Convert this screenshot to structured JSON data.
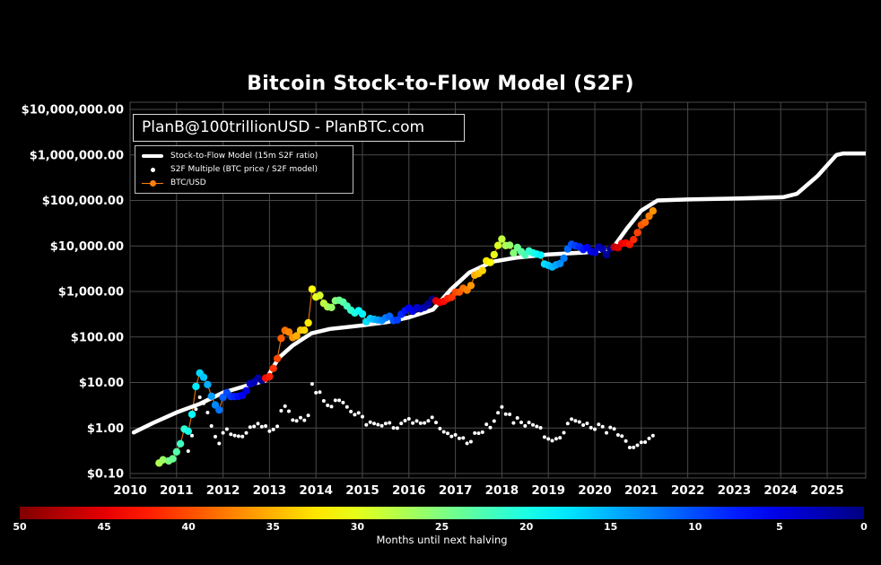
{
  "title": "Bitcoin Stock-to-Flow Model (S2F)",
  "annotation": "PlanB@100trillionUSD - PlanBTC.com",
  "legend": [
    {
      "label": "Stock-to-Flow Model (15m S2F ratio)",
      "marker": "thick-white-line"
    },
    {
      "label": "S2F Multiple (BTC price / S2F model)",
      "marker": "white-dot"
    },
    {
      "label": "BTC/USD",
      "marker": "orange-line-dot"
    }
  ],
  "colorbar": {
    "label": "Months until next halving",
    "ticks": [
      50,
      45,
      40,
      35,
      30,
      25,
      20,
      15,
      10,
      5,
      0
    ]
  },
  "colors": {
    "background": "#000000",
    "text": "#ffffff",
    "grid": "#4a4a4a",
    "model_line": "#ffffff",
    "btc_line": "#ff7f0e",
    "multiple_dot": "#ffffff"
  },
  "chart_data": {
    "type": "scatter",
    "title": "Bitcoin Stock-to-Flow Model (S2F)",
    "x_axis": {
      "range": [
        2010,
        2025.83
      ],
      "ticks": [
        2010,
        2011,
        2012,
        2013,
        2014,
        2015,
        2016,
        2017,
        2018,
        2019,
        2020,
        2021,
        2022,
        2023,
        2024,
        2025
      ]
    },
    "y_axis": {
      "scale": "log",
      "range": [
        0.1,
        10000000
      ],
      "ticks": [
        {
          "value": 10000000,
          "label": "$10,000,000.00"
        },
        {
          "value": 1000000,
          "label": "$1,000,000.00"
        },
        {
          "value": 100000,
          "label": "$100,000.00"
        },
        {
          "value": 10000,
          "label": "$10,000.00"
        },
        {
          "value": 1000,
          "label": "$1,000.00"
        },
        {
          "value": 100,
          "label": "$100.00"
        },
        {
          "value": 10,
          "label": "$10.00"
        },
        {
          "value": 1,
          "label": "$1.00"
        },
        {
          "value": 0.1,
          "label": "$0.10"
        }
      ]
    },
    "halvings": [
      2012.907,
      2016.519,
      2020.36,
      2024.3
    ],
    "months_color_scale": {
      "min": 0,
      "max": 50,
      "colormap": "jet-reversed",
      "note": "BTC/USD dots colored by months until next halving; 50=dark red, 0=dark blue"
    },
    "model_line": {
      "name": "Stock-to-Flow Model (15m S2F ratio)",
      "points": [
        [
          2010.08,
          0.8
        ],
        [
          2010.5,
          1.3
        ],
        [
          2011.0,
          2.2
        ],
        [
          2011.5,
          3.4
        ],
        [
          2012.0,
          6.0
        ],
        [
          2012.5,
          8.5
        ],
        [
          2012.91,
          11
        ],
        [
          2013.2,
          35
        ],
        [
          2013.5,
          65
        ],
        [
          2013.9,
          120
        ],
        [
          2014.3,
          150
        ],
        [
          2015.0,
          180
        ],
        [
          2015.5,
          210
        ],
        [
          2016.0,
          270
        ],
        [
          2016.52,
          400
        ],
        [
          2016.9,
          1100
        ],
        [
          2017.3,
          2600
        ],
        [
          2017.8,
          4500
        ],
        [
          2018.3,
          5500
        ],
        [
          2019.0,
          6500
        ],
        [
          2019.8,
          7200
        ],
        [
          2020.37,
          8500
        ],
        [
          2020.7,
          25000
        ],
        [
          2021.0,
          60000
        ],
        [
          2021.35,
          100000
        ],
        [
          2022.0,
          105000
        ],
        [
          2023.0,
          110000
        ],
        [
          2024.05,
          118000
        ],
        [
          2024.35,
          140000
        ],
        [
          2024.8,
          350000
        ],
        [
          2025.2,
          1000000
        ],
        [
          2025.35,
          1080000
        ],
        [
          2025.83,
          1080000
        ]
      ]
    },
    "btc_usd": {
      "name": "BTC/USD",
      "color_by": "months until next halving (derived from halvings list)",
      "points": [
        [
          2010.625,
          0.17
        ],
        [
          2010.708,
          0.2
        ],
        [
          2010.833,
          0.19
        ],
        [
          2010.917,
          0.21
        ],
        [
          2011.0,
          0.3
        ],
        [
          2011.083,
          0.45
        ],
        [
          2011.167,
          0.95
        ],
        [
          2011.25,
          0.85
        ],
        [
          2011.333,
          2.0
        ],
        [
          2011.417,
          8.2
        ],
        [
          2011.5,
          16.1
        ],
        [
          2011.583,
          13.0
        ],
        [
          2011.667,
          9.0
        ],
        [
          2011.75,
          5.0
        ],
        [
          2011.833,
          3.2
        ],
        [
          2011.917,
          2.5
        ],
        [
          2012.0,
          4.7
        ],
        [
          2012.083,
          6.0
        ],
        [
          2012.167,
          4.9
        ],
        [
          2012.25,
          4.9
        ],
        [
          2012.333,
          5.0
        ],
        [
          2012.417,
          5.2
        ],
        [
          2012.5,
          6.6
        ],
        [
          2012.583,
          9.4
        ],
        [
          2012.667,
          10.2
        ],
        [
          2012.75,
          12.4
        ],
        [
          2012.833,
          11.2
        ],
        [
          2012.917,
          12.5
        ],
        [
          2013.0,
          13.5
        ],
        [
          2013.083,
          20.4
        ],
        [
          2013.167,
          33.4
        ],
        [
          2013.25,
          93
        ],
        [
          2013.333,
          139
        ],
        [
          2013.417,
          128
        ],
        [
          2013.5,
          97
        ],
        [
          2013.583,
          106
        ],
        [
          2013.667,
          141
        ],
        [
          2013.75,
          141
        ],
        [
          2013.833,
          204
        ],
        [
          2013.917,
          1127
        ],
        [
          2014.0,
          755
        ],
        [
          2014.083,
          815
        ],
        [
          2014.167,
          550
        ],
        [
          2014.25,
          458
        ],
        [
          2014.333,
          446
        ],
        [
          2014.417,
          627
        ],
        [
          2014.5,
          640
        ],
        [
          2014.583,
          585
        ],
        [
          2014.667,
          478
        ],
        [
          2014.75,
          387
        ],
        [
          2014.833,
          338
        ],
        [
          2014.917,
          378
        ],
        [
          2015.0,
          320
        ],
        [
          2015.083,
          217
        ],
        [
          2015.167,
          254
        ],
        [
          2015.25,
          244
        ],
        [
          2015.333,
          236
        ],
        [
          2015.417,
          230
        ],
        [
          2015.5,
          263
        ],
        [
          2015.583,
          284
        ],
        [
          2015.667,
          230
        ],
        [
          2015.75,
          236
        ],
        [
          2015.833,
          314
        ],
        [
          2015.917,
          377
        ],
        [
          2016.0,
          430
        ],
        [
          2016.083,
          368
        ],
        [
          2016.167,
          437
        ],
        [
          2016.25,
          416
        ],
        [
          2016.333,
          448
        ],
        [
          2016.417,
          531
        ],
        [
          2016.5,
          673
        ],
        [
          2016.583,
          624
        ],
        [
          2016.667,
          575
        ],
        [
          2016.75,
          609
        ],
        [
          2016.833,
          700
        ],
        [
          2016.917,
          745
        ],
        [
          2017.0,
          963
        ],
        [
          2017.083,
          970
        ],
        [
          2017.167,
          1179
        ],
        [
          2017.25,
          1071
        ],
        [
          2017.333,
          1347
        ],
        [
          2017.417,
          2286
        ],
        [
          2017.5,
          2480
        ],
        [
          2017.583,
          2875
        ],
        [
          2017.667,
          4703
        ],
        [
          2017.75,
          4338
        ],
        [
          2017.833,
          6468
        ],
        [
          2017.917,
          10233
        ],
        [
          2018.0,
          14156
        ],
        [
          2018.083,
          10221
        ],
        [
          2018.167,
          10397
        ],
        [
          2018.25,
          6973
        ],
        [
          2018.333,
          9240
        ],
        [
          2018.417,
          7494
        ],
        [
          2018.5,
          6404
        ],
        [
          2018.583,
          7780
        ],
        [
          2018.667,
          7037
        ],
        [
          2018.75,
          6625
        ],
        [
          2018.833,
          6317
        ],
        [
          2018.917,
          4017
        ],
        [
          2019.0,
          3742
        ],
        [
          2019.083,
          3457
        ],
        [
          2019.167,
          3854
        ],
        [
          2019.25,
          4105
        ],
        [
          2019.333,
          5350
        ],
        [
          2019.417,
          8574
        ],
        [
          2019.5,
          10817
        ],
        [
          2019.583,
          10085
        ],
        [
          2019.667,
          9630
        ],
        [
          2019.75,
          8308
        ],
        [
          2019.833,
          9199
        ],
        [
          2019.917,
          7569
        ],
        [
          2020.0,
          7193
        ],
        [
          2020.083,
          9350
        ],
        [
          2020.167,
          8599
        ],
        [
          2020.25,
          6438
        ],
        [
          2020.333,
          8658
        ],
        [
          2020.417,
          9461
        ],
        [
          2020.5,
          9137
        ],
        [
          2020.583,
          11351
        ],
        [
          2020.667,
          11655
        ],
        [
          2020.75,
          10784
        ],
        [
          2020.833,
          13781
        ],
        [
          2020.917,
          19625
        ],
        [
          2021.0,
          28994
        ],
        [
          2021.083,
          33114
        ],
        [
          2021.167,
          45137
        ],
        [
          2021.25,
          58786
        ]
      ]
    },
    "s2f_multiple": {
      "name": "S2F Multiple (BTC price / S2F model)",
      "derivation": "btc_usd price divided by model_line value at same date",
      "plot_from": 2011.25
    }
  }
}
